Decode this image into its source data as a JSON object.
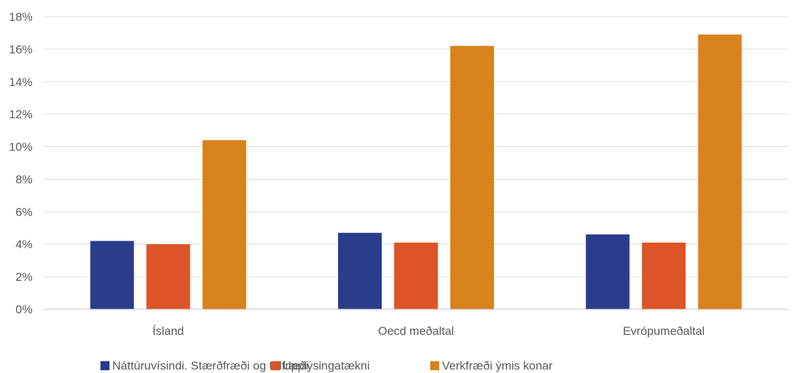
{
  "chart_data": {
    "type": "bar",
    "title": "",
    "xlabel": "",
    "ylabel": "",
    "ylim": [
      0,
      18
    ],
    "y_ticks": [
      0,
      2,
      4,
      6,
      8,
      10,
      12,
      14,
      16,
      18
    ],
    "y_tick_suffix": "%",
    "grid": true,
    "legend_position": "bottom",
    "categories": [
      "Ísland",
      "Oecd meðaltal",
      "Evrópumeðaltal"
    ],
    "series": [
      {
        "name": "Náttúruvísindi. Stærðfræði og tölfræði",
        "color": "#2a3d8b",
        "values": [
          4.2,
          4.7,
          4.6
        ]
      },
      {
        "name": "Upplýsingatækni",
        "color": "#dd5426",
        "values": [
          4.0,
          4.1,
          4.1
        ]
      },
      {
        "name": "Verkfræði ýmis konar",
        "color": "#d8821c",
        "values": [
          10.4,
          16.2,
          16.9
        ]
      }
    ]
  }
}
